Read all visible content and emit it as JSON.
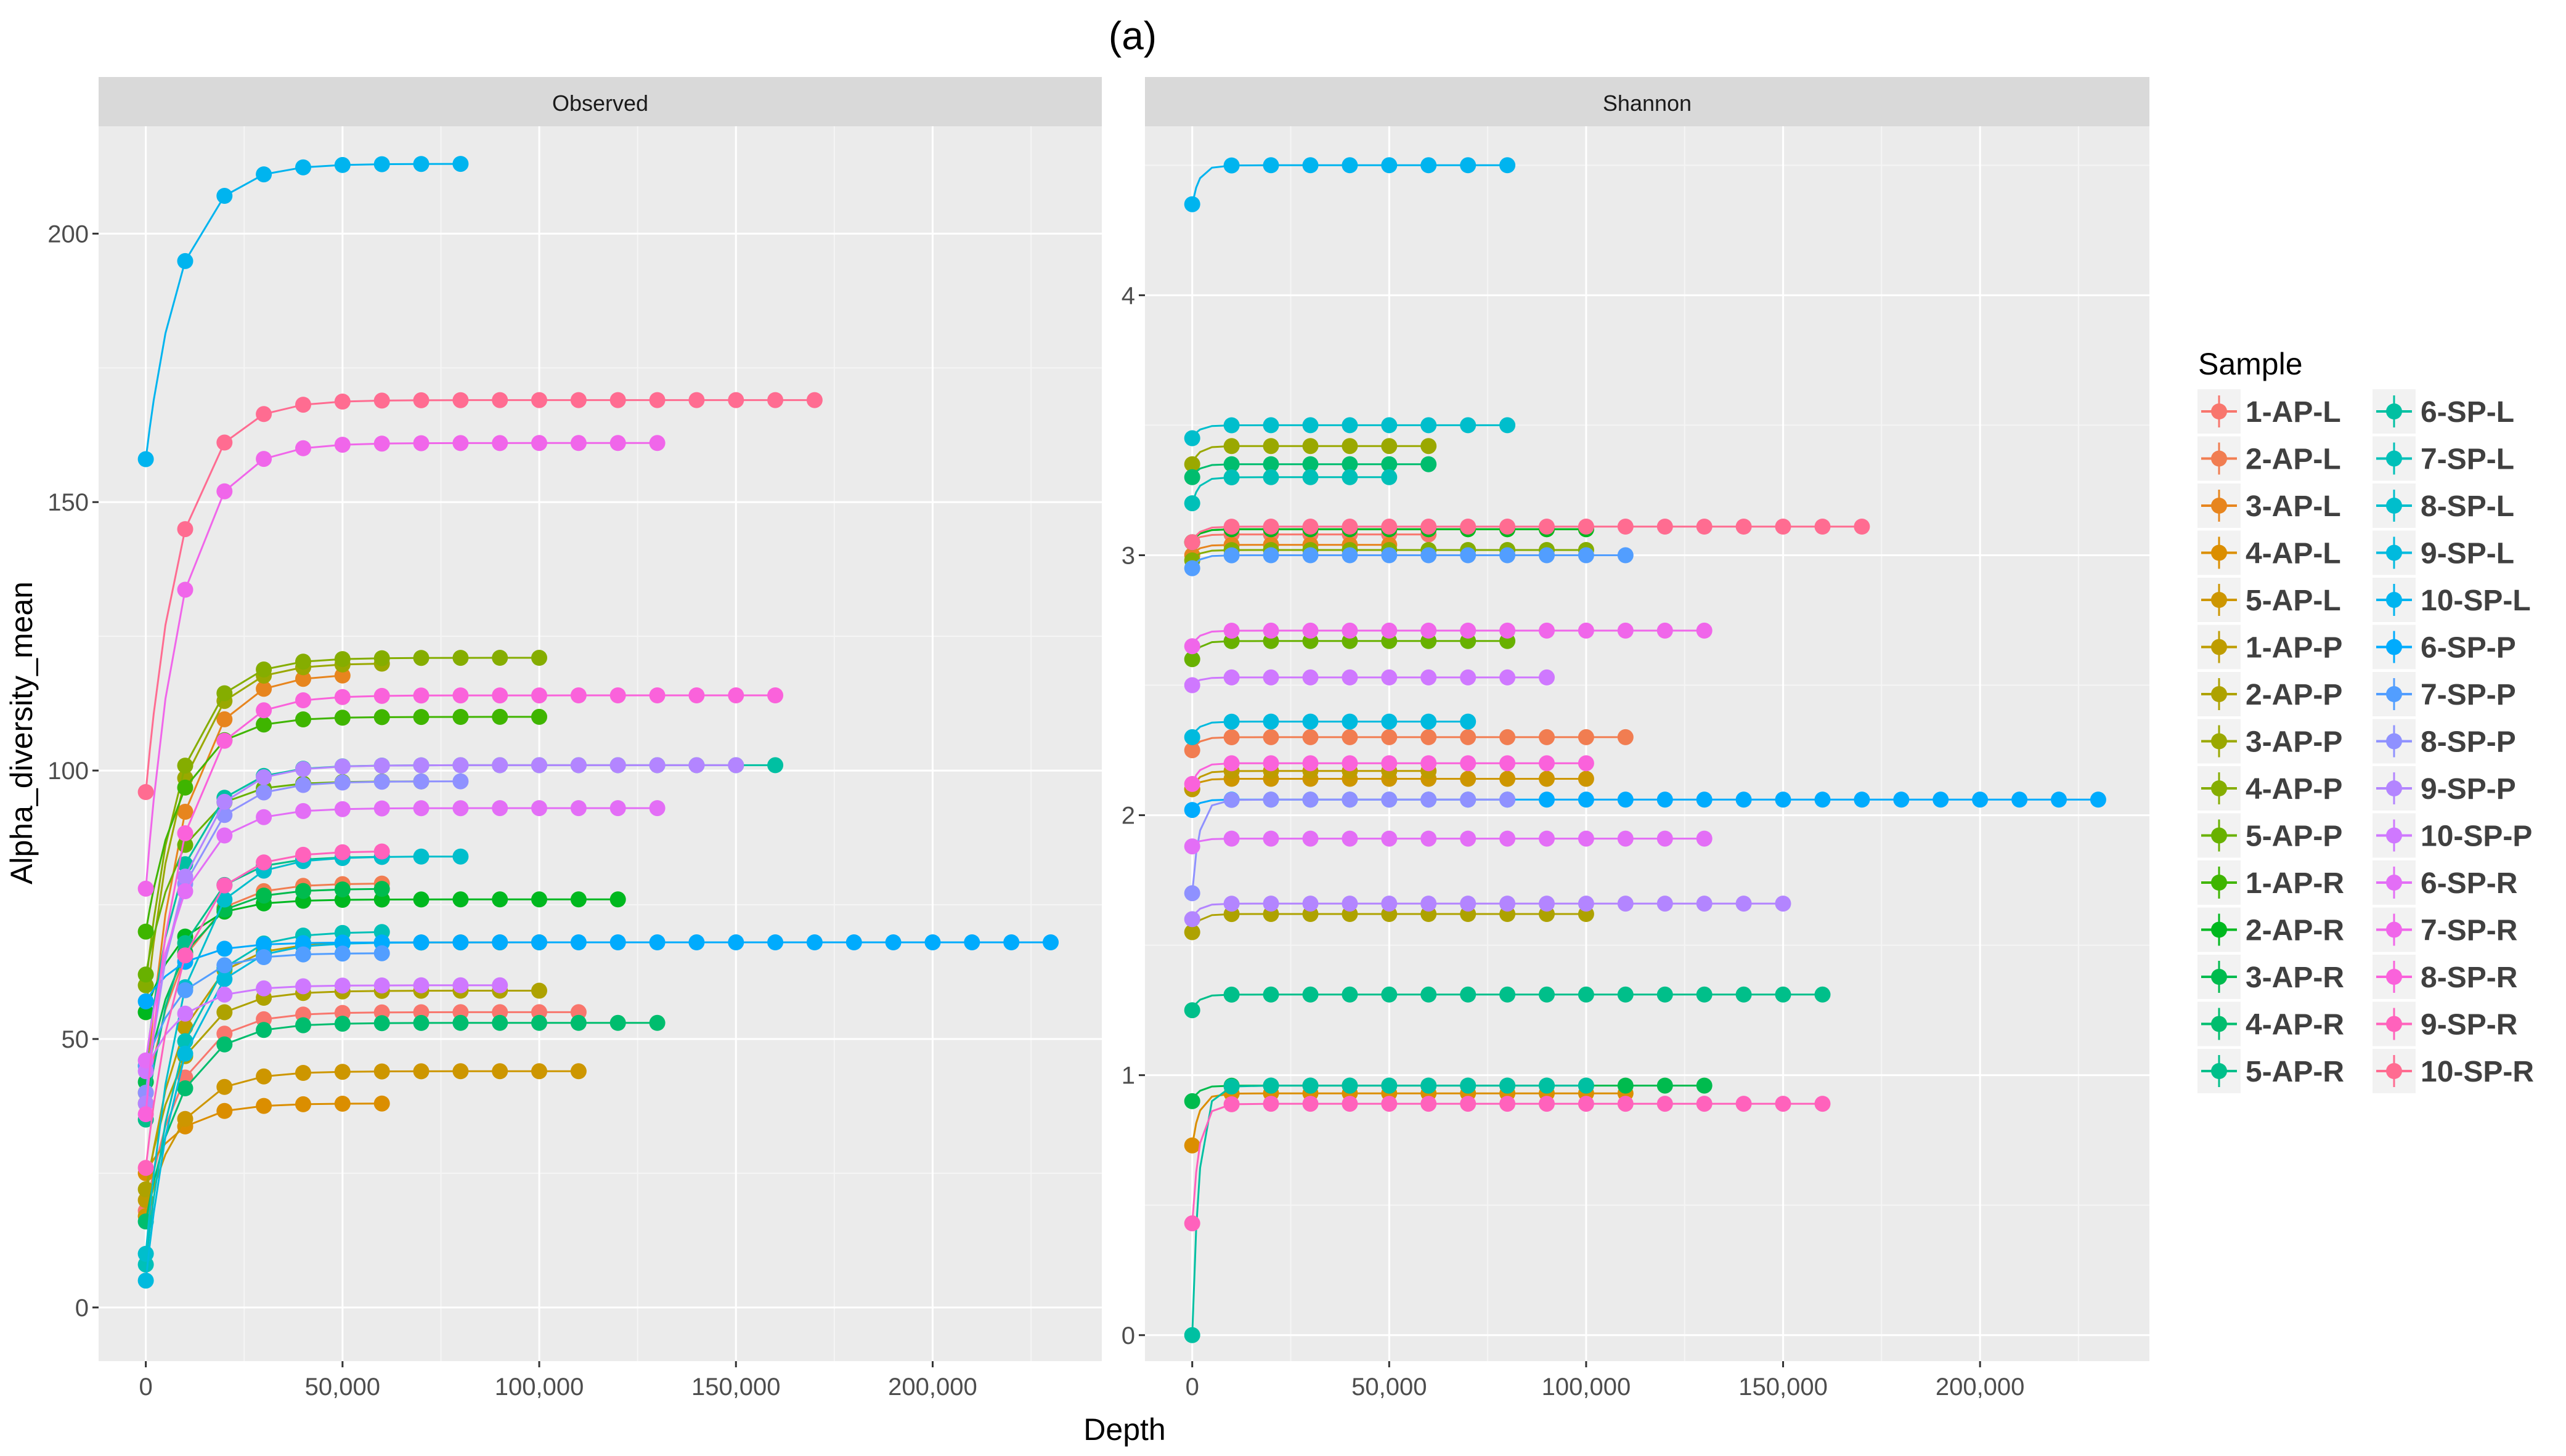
{
  "figure": {
    "title": "(a)",
    "x_label": "Depth",
    "y_label": "Alpha_diversity_mean",
    "legend_title": "Sample"
  },
  "chart_data": {
    "type": "line",
    "x_ticks": [
      0,
      50000,
      100000,
      150000,
      200000
    ],
    "x_tick_labels": [
      "0",
      "50,000",
      "100,000",
      "150,000",
      "200,000"
    ],
    "xlim": [
      -12000,
      243000
    ],
    "panels": [
      {
        "name": "Observed",
        "ylim": [
          -10,
          220
        ],
        "y_ticks": [
          0,
          50,
          100,
          150,
          200
        ],
        "y_tick_labels": [
          "0",
          "50",
          "100",
          "150",
          "200"
        ]
      },
      {
        "name": "Shannon",
        "ylim": [
          -0.1,
          4.65
        ],
        "y_ticks": [
          0,
          1,
          2,
          3,
          4
        ],
        "y_tick_labels": [
          "0",
          "1",
          "2",
          "3",
          "4"
        ]
      }
    ],
    "series": [
      {
        "name": "1-AP-L",
        "color": "#F8766D",
        "observed": {
          "max_depth": 110000,
          "plateau": 55,
          "start": 18
        },
        "shannon": {
          "max_depth": 60000,
          "plateau": 3.08,
          "start": 3.05
        }
      },
      {
        "name": "2-AP-L",
        "color": "#F17D51",
        "observed": {
          "max_depth": 60000,
          "plateau": 79,
          "start": 38
        },
        "shannon": {
          "max_depth": 110000,
          "plateau": 2.3,
          "start": 2.25
        }
      },
      {
        "name": "3-AP-L",
        "color": "#E7851E",
        "observed": {
          "max_depth": 50000,
          "plateau": 118,
          "start": 40
        },
        "shannon": {
          "max_depth": 50000,
          "plateau": 3.04,
          "start": 3.0
        }
      },
      {
        "name": "4-AP-L",
        "color": "#DB8E00",
        "observed": {
          "max_depth": 60000,
          "plateau": 38,
          "start": 25
        },
        "shannon": {
          "max_depth": 110000,
          "plateau": 0.93,
          "start": 0.73
        }
      },
      {
        "name": "5-AP-L",
        "color": "#CD9600",
        "observed": {
          "max_depth": 110000,
          "plateau": 44,
          "start": 17
        },
        "shannon": {
          "max_depth": 100000,
          "plateau": 2.14,
          "start": 2.1
        }
      },
      {
        "name": "1-AP-P",
        "color": "#BE9C00",
        "observed": {
          "max_depth": 100000,
          "plateau": 68,
          "start": 20
        },
        "shannon": {
          "max_depth": 60000,
          "plateau": 2.17,
          "start": 2.1
        }
      },
      {
        "name": "2-AP-P",
        "color": "#AEA200",
        "observed": {
          "max_depth": 100000,
          "plateau": 59,
          "start": 22
        },
        "shannon": {
          "max_depth": 100000,
          "plateau": 1.62,
          "start": 1.55
        }
      },
      {
        "name": "3-AP-P",
        "color": "#9AA800",
        "observed": {
          "max_depth": 60000,
          "plateau": 120,
          "start": 55
        },
        "shannon": {
          "max_depth": 60000,
          "plateau": 3.42,
          "start": 3.35
        }
      },
      {
        "name": "4-AP-P",
        "color": "#85AD00",
        "observed": {
          "max_depth": 100000,
          "plateau": 121,
          "start": 60
        },
        "shannon": {
          "max_depth": 100000,
          "plateau": 3.02,
          "start": 2.98
        }
      },
      {
        "name": "5-AP-P",
        "color": "#68B100",
        "observed": {
          "max_depth": 70000,
          "plateau": 98,
          "start": 62
        },
        "shannon": {
          "max_depth": 80000,
          "plateau": 2.67,
          "start": 2.6
        }
      },
      {
        "name": "1-AP-R",
        "color": "#3FB500",
        "observed": {
          "max_depth": 100000,
          "plateau": 110,
          "start": 70
        },
        "shannon": {
          "max_depth": 100000,
          "plateau": 3.1,
          "start": 3.05
        }
      },
      {
        "name": "2-AP-R",
        "color": "#00B81F",
        "observed": {
          "max_depth": 120000,
          "plateau": 76,
          "start": 55
        },
        "shannon": {
          "max_depth": 100000,
          "plateau": 3.1,
          "start": 3.05
        }
      },
      {
        "name": "3-AP-R",
        "color": "#00BB4E",
        "observed": {
          "max_depth": 60000,
          "plateau": 78,
          "start": 42
        },
        "shannon": {
          "max_depth": 130000,
          "plateau": 0.96,
          "start": 0.9
        }
      },
      {
        "name": "4-AP-R",
        "color": "#00BD6E",
        "observed": {
          "max_depth": 130000,
          "plateau": 53,
          "start": 16
        },
        "shannon": {
          "max_depth": 60000,
          "plateau": 3.35,
          "start": 3.3
        }
      },
      {
        "name": "5-AP-R",
        "color": "#00BF8A",
        "observed": {
          "max_depth": 60000,
          "plateau": 84,
          "start": 35
        },
        "shannon": {
          "max_depth": 160000,
          "plateau": 1.31,
          "start": 1.25
        }
      },
      {
        "name": "6-SP-L",
        "color": "#00C0A2",
        "observed": {
          "max_depth": 160000,
          "plateau": 101,
          "start": 45
        },
        "shannon": {
          "max_depth": 100000,
          "plateau": 0.96,
          "start": 0.0
        }
      },
      {
        "name": "7-SP-L",
        "color": "#00C0B8",
        "observed": {
          "max_depth": 60000,
          "plateau": 70,
          "start": 8
        },
        "shannon": {
          "max_depth": 50000,
          "plateau": 3.3,
          "start": 3.2
        }
      },
      {
        "name": "8-SP-L",
        "color": "#00BECC",
        "observed": {
          "max_depth": 80000,
          "plateau": 84,
          "start": 10
        },
        "shannon": {
          "max_depth": 80000,
          "plateau": 3.5,
          "start": 3.45
        }
      },
      {
        "name": "9-SP-L",
        "color": "#00BADE",
        "observed": {
          "max_depth": 70000,
          "plateau": 68,
          "start": 5
        },
        "shannon": {
          "max_depth": 70000,
          "plateau": 2.36,
          "start": 2.3
        }
      },
      {
        "name": "10-SP-L",
        "color": "#00B4EF",
        "observed": {
          "max_depth": 80000,
          "plateau": 213,
          "start": 158
        },
        "shannon": {
          "max_depth": 80000,
          "plateau": 4.5,
          "start": 4.35
        }
      },
      {
        "name": "6-SP-P",
        "color": "#00ABFD",
        "observed": {
          "max_depth": 230000,
          "plateau": 68,
          "start": 57
        },
        "shannon": {
          "max_depth": 230000,
          "plateau": 2.06,
          "start": 2.02
        }
      },
      {
        "name": "7-SP-P",
        "color": "#529EFF",
        "observed": {
          "max_depth": 60000,
          "plateau": 66,
          "start": 45
        },
        "shannon": {
          "max_depth": 110000,
          "plateau": 3.0,
          "start": 2.95
        }
      },
      {
        "name": "8-SP-P",
        "color": "#8F91FF",
        "observed": {
          "max_depth": 80000,
          "plateau": 98,
          "start": 40
        },
        "shannon": {
          "max_depth": 80000,
          "plateau": 2.06,
          "start": 1.7
        }
      },
      {
        "name": "9-SP-P",
        "color": "#B385FF",
        "observed": {
          "max_depth": 150000,
          "plateau": 101,
          "start": 38
        },
        "shannon": {
          "max_depth": 150000,
          "plateau": 1.66,
          "start": 1.6
        }
      },
      {
        "name": "10-SP-P",
        "color": "#CF78FF",
        "observed": {
          "max_depth": 90000,
          "plateau": 60,
          "start": 44
        },
        "shannon": {
          "max_depth": 90000,
          "plateau": 2.53,
          "start": 2.5
        }
      },
      {
        "name": "6-SP-R",
        "color": "#E36EF6",
        "observed": {
          "max_depth": 130000,
          "plateau": 93,
          "start": 46
        },
        "shannon": {
          "max_depth": 130000,
          "plateau": 1.91,
          "start": 1.88
        }
      },
      {
        "name": "7-SP-R",
        "color": "#F066EA",
        "observed": {
          "max_depth": 130000,
          "plateau": 161,
          "start": 78
        },
        "shannon": {
          "max_depth": 130000,
          "plateau": 2.71,
          "start": 2.65
        }
      },
      {
        "name": "8-SP-R",
        "color": "#FA62DB",
        "observed": {
          "max_depth": 160000,
          "plateau": 114,
          "start": 36
        },
        "shannon": {
          "max_depth": 100000,
          "plateau": 2.2,
          "start": 2.12
        }
      },
      {
        "name": "9-SP-R",
        "color": "#FF62BC",
        "observed": {
          "max_depth": 60000,
          "plateau": 85,
          "start": 26
        },
        "shannon": {
          "max_depth": 160000,
          "plateau": 0.89,
          "start": 0.43
        }
      },
      {
        "name": "10-SP-R",
        "color": "#FF6C91",
        "observed": {
          "max_depth": 170000,
          "plateau": 169,
          "start": 96
        },
        "shannon": {
          "max_depth": 170000,
          "plateau": 3.11,
          "start": 3.05
        }
      }
    ]
  }
}
